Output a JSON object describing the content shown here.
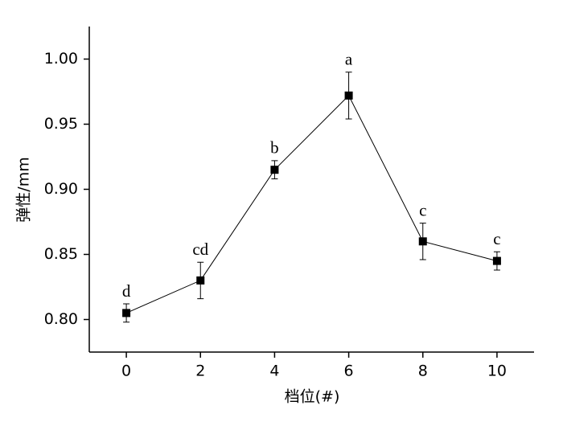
{
  "chart_data": {
    "type": "line",
    "x_label": "档位(#)",
    "y_label": "弹性/mm",
    "x": [
      0,
      2,
      4,
      6,
      8,
      10
    ],
    "values": [
      0.805,
      0.83,
      0.915,
      0.972,
      0.86,
      0.845
    ],
    "errors": [
      0.007,
      0.014,
      0.007,
      0.018,
      0.014,
      0.007
    ],
    "annotations": [
      "d",
      "cd",
      "b",
      "a",
      "c",
      "c"
    ],
    "color": "#000000",
    "xlim": [
      -1,
      11
    ],
    "xticks": [
      0,
      2,
      4,
      6,
      8,
      10
    ],
    "ylim": [
      0.775,
      1.025
    ],
    "yticks": [
      {
        "value": 0.8,
        "label": "0.80"
      },
      {
        "value": 0.85,
        "label": "0.85"
      },
      {
        "value": 0.9,
        "label": "0.90"
      },
      {
        "value": 0.95,
        "label": "0.95"
      },
      {
        "value": 1.0,
        "label": "1.00"
      }
    ]
  }
}
